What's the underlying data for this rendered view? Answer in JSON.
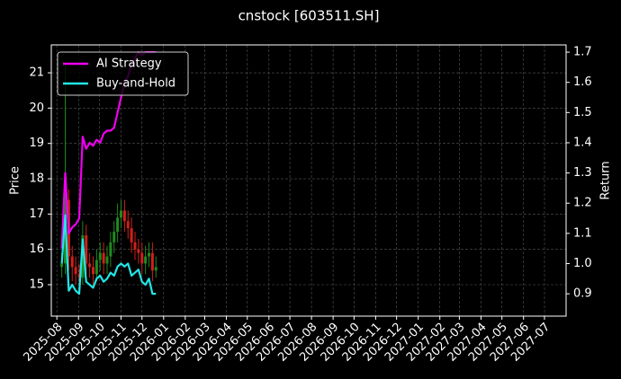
{
  "chart_data": {
    "type": "candlestick",
    "title": "cnstock [603511.SH]",
    "ylabel": "Price",
    "y2label": "Return",
    "x": [
      "2025-08-08",
      "2025-08-13",
      "2025-08-18",
      "2025-08-23",
      "2025-08-28",
      "2025-09-02",
      "2025-09-07",
      "2025-09-12",
      "2025-09-17",
      "2025-09-22",
      "2025-09-27",
      "2025-10-02",
      "2025-10-07",
      "2025-10-12",
      "2025-10-17",
      "2025-10-22",
      "2025-10-27",
      "2025-11-01",
      "2025-11-06",
      "2025-11-11",
      "2025-11-16",
      "2025-11-21",
      "2025-11-26",
      "2025-12-01",
      "2025-12-06",
      "2025-12-11",
      "2025-12-16",
      "2025-12-21"
    ],
    "open": [
      15.5,
      15.6,
      17.4,
      15.8,
      15.5,
      15.3,
      15.2,
      16.4,
      15.6,
      15.5,
      15.3,
      15.7,
      15.9,
      15.6,
      15.8,
      16.2,
      16.5,
      16.9,
      17.1,
      16.8,
      16.6,
      16.2,
      16.0,
      15.9,
      15.6,
      15.8,
      15.9,
      15.4
    ],
    "high": [
      15.9,
      21.2,
      17.7,
      16.1,
      15.8,
      15.6,
      16.8,
      16.7,
      15.9,
      15.8,
      16.0,
      16.2,
      16.2,
      16.1,
      16.5,
      16.8,
      17.3,
      17.4,
      17.4,
      17.1,
      16.9,
      16.5,
      16.3,
      16.2,
      16.1,
      16.2,
      16.2,
      15.8
    ],
    "low": [
      15.2,
      15.3,
      15.4,
      15.1,
      15.0,
      14.9,
      15.0,
      15.3,
      15.2,
      15.0,
      15.1,
      15.4,
      15.3,
      15.3,
      15.5,
      15.9,
      16.2,
      16.6,
      16.5,
      16.3,
      15.9,
      15.7,
      15.6,
      15.3,
      15.3,
      15.5,
      15.1,
      15.2
    ],
    "close": [
      15.6,
      17.4,
      15.8,
      15.5,
      15.3,
      15.2,
      16.4,
      15.6,
      15.5,
      15.3,
      15.7,
      15.9,
      15.6,
      15.8,
      16.2,
      16.5,
      16.9,
      17.1,
      16.8,
      16.6,
      16.2,
      16.0,
      15.9,
      15.6,
      15.8,
      15.9,
      15.4,
      15.5
    ],
    "up_color": "#1f8a1f",
    "down_color": "#d0201a",
    "series": [
      {
        "name": "AI Strategy",
        "color": "#ee00ee",
        "axis": "y2",
        "values": [
          1.05,
          1.3,
          1.1,
          1.12,
          1.13,
          1.15,
          1.42,
          1.38,
          1.4,
          1.39,
          1.41,
          1.4,
          1.43,
          1.44,
          1.44,
          1.45,
          1.5,
          1.55,
          1.6,
          1.62,
          1.66,
          1.68,
          1.7,
          1.69,
          1.7,
          1.7,
          1.7,
          1.7
        ]
      },
      {
        "name": "Buy-and-Hold",
        "color": "#22e6e6",
        "axis": "y2",
        "values": [
          1.0,
          1.16,
          0.91,
          0.93,
          0.91,
          0.9,
          1.08,
          0.94,
          0.93,
          0.92,
          0.95,
          0.96,
          0.94,
          0.95,
          0.97,
          0.96,
          0.99,
          1.0,
          0.99,
          1.0,
          0.96,
          0.97,
          0.98,
          0.94,
          0.93,
          0.95,
          0.9,
          0.9
        ]
      }
    ],
    "xlim": [
      "2025-07-24",
      "2027-08-01"
    ],
    "xticks": [
      "2025-08",
      "2025-09",
      "2025-10",
      "2025-11",
      "2025-12",
      "2026-01",
      "2026-02",
      "2026-03",
      "2026-04",
      "2026-05",
      "2026-06",
      "2026-07",
      "2026-08",
      "2026-09",
      "2026-10",
      "2026-11",
      "2026-12",
      "2027-01",
      "2027-02",
      "2027-03",
      "2027-04",
      "2027-05",
      "2027-06",
      "2027-07"
    ],
    "ylim": [
      14.11,
      21.79
    ],
    "yticks": [
      15,
      16,
      17,
      18,
      19,
      20,
      21
    ],
    "y2lim": [
      0.826,
      1.724
    ],
    "y2ticks": [
      {
        "value": 0.9,
        "label": "0.9"
      },
      {
        "value": 1,
        "label": "1.0"
      },
      1.1,
      1.2,
      1.3,
      1.4,
      1.5,
      1.6,
      1.7
    ],
    "grid": true,
    "legend": "upper left"
  }
}
